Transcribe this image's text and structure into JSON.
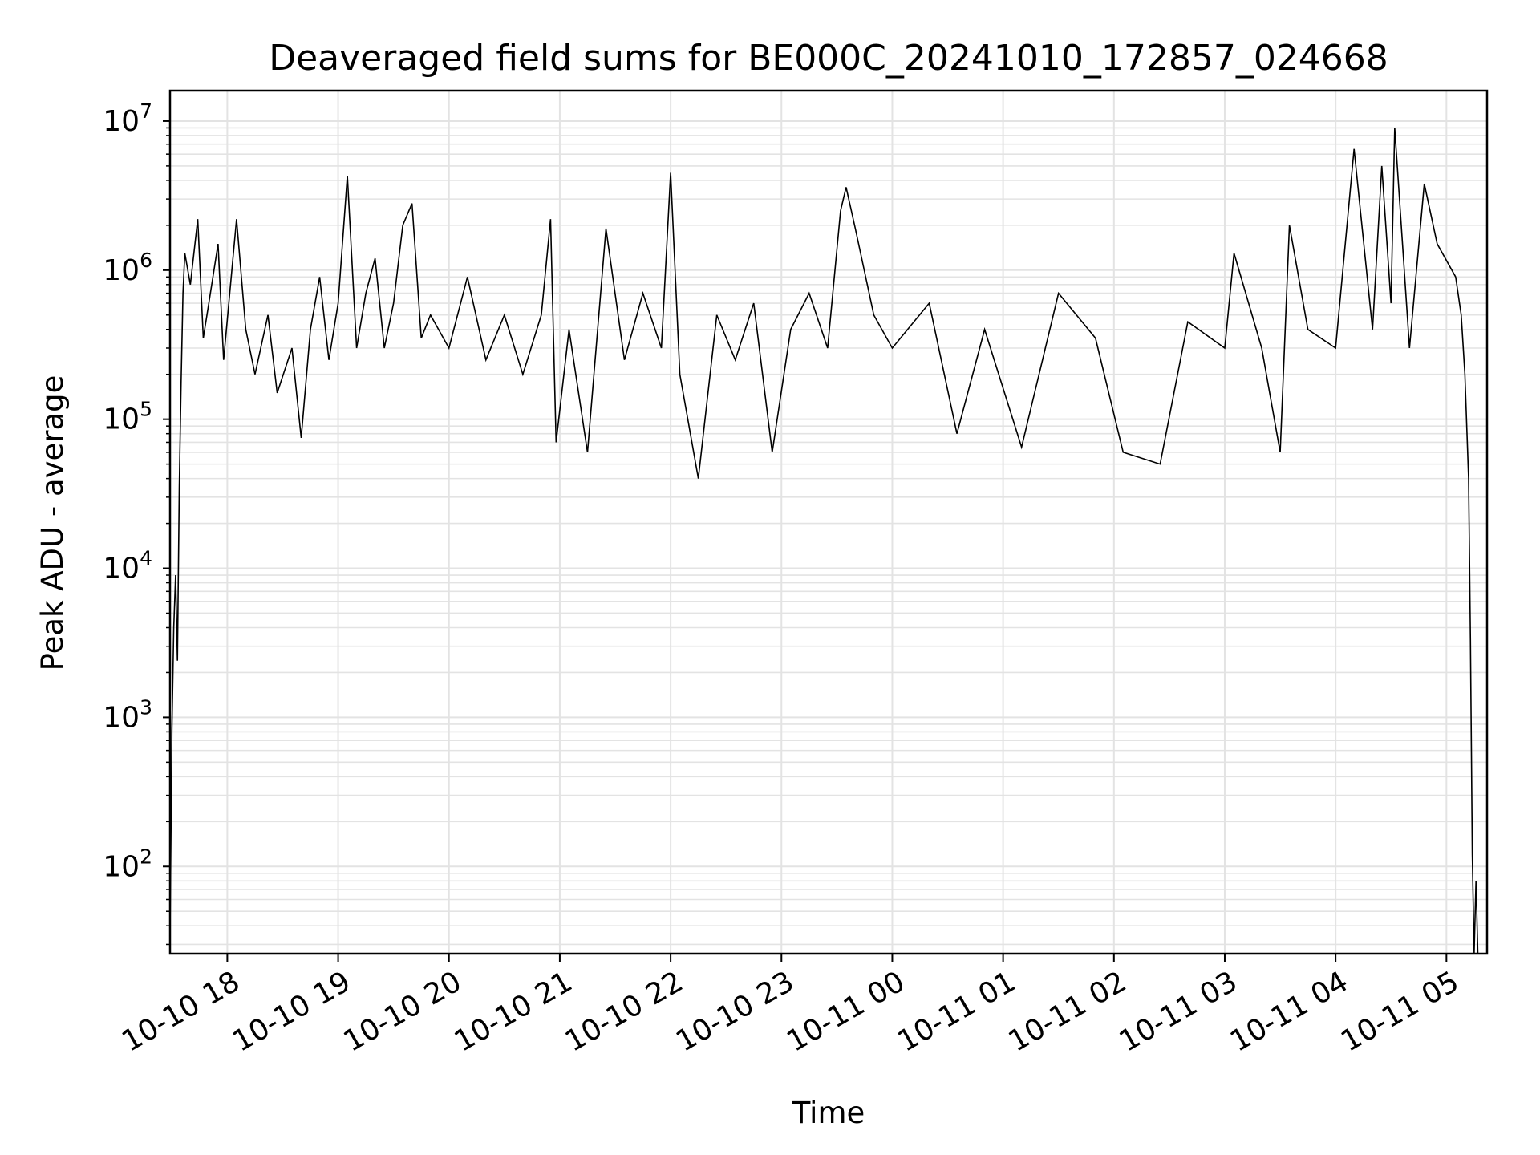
{
  "chart_data": {
    "type": "line",
    "title": "Deaveraged field sums for BE000C_20241010_172857_024668",
    "xlabel": "Time",
    "ylabel": "Peak ADU - average",
    "yscale": "log",
    "ylim": [
      26,
      16000000
    ],
    "xlim": [
      "2024-10-10 17:29",
      "2024-10-11 05:22"
    ],
    "grid": true,
    "line_color": "#000000",
    "grid_color": "#e3e3e3",
    "x_ticks": [
      {
        "value": "2024-10-10 18:00",
        "label": "10-10 18"
      },
      {
        "value": "2024-10-10 19:00",
        "label": "10-10 19"
      },
      {
        "value": "2024-10-10 20:00",
        "label": "10-10 20"
      },
      {
        "value": "2024-10-10 21:00",
        "label": "10-10 21"
      },
      {
        "value": "2024-10-10 22:00",
        "label": "10-10 22"
      },
      {
        "value": "2024-10-10 23:00",
        "label": "10-10 23"
      },
      {
        "value": "2024-10-11 00:00",
        "label": "10-11 00"
      },
      {
        "value": "2024-10-11 01:00",
        "label": "10-11 01"
      },
      {
        "value": "2024-10-11 02:00",
        "label": "10-11 02"
      },
      {
        "value": "2024-10-11 03:00",
        "label": "10-11 03"
      },
      {
        "value": "2024-10-11 04:00",
        "label": "10-11 04"
      },
      {
        "value": "2024-10-11 05:00",
        "label": "10-11 05"
      }
    ],
    "y_ticks": [
      {
        "value": 100,
        "base": "10",
        "exp": "2"
      },
      {
        "value": 1000,
        "base": "10",
        "exp": "3"
      },
      {
        "value": 10000,
        "base": "10",
        "exp": "4"
      },
      {
        "value": 100000,
        "base": "10",
        "exp": "5"
      },
      {
        "value": 1000000,
        "base": "10",
        "exp": "6"
      },
      {
        "value": 10000000,
        "base": "10",
        "exp": "7"
      }
    ],
    "series": [
      {
        "points": [
          [
            "2024-10-10 17:29",
            35
          ],
          [
            "2024-10-10 17:30",
            800
          ],
          [
            "2024-10-10 17:31",
            4000
          ],
          [
            "2024-10-10 17:32",
            9000
          ],
          [
            "2024-10-10 17:33",
            2400
          ],
          [
            "2024-10-10 17:34",
            35000
          ],
          [
            "2024-10-10 17:35",
            180000
          ],
          [
            "2024-10-10 17:36",
            700000
          ],
          [
            "2024-10-10 17:37",
            1300000
          ],
          [
            "2024-10-10 17:40",
            800000
          ],
          [
            "2024-10-10 17:44",
            2200000
          ],
          [
            "2024-10-10 17:47",
            350000
          ],
          [
            "2024-10-10 17:50",
            600000
          ],
          [
            "2024-10-10 17:55",
            1500000
          ],
          [
            "2024-10-10 17:58",
            250000
          ],
          [
            "2024-10-10 18:05",
            2200000
          ],
          [
            "2024-10-10 18:10",
            400000
          ],
          [
            "2024-10-10 18:15",
            200000
          ],
          [
            "2024-10-10 18:22",
            500000
          ],
          [
            "2024-10-10 18:27",
            150000
          ],
          [
            "2024-10-10 18:35",
            300000
          ],
          [
            "2024-10-10 18:40",
            75000
          ],
          [
            "2024-10-10 18:45",
            400000
          ],
          [
            "2024-10-10 18:50",
            900000
          ],
          [
            "2024-10-10 18:55",
            250000
          ],
          [
            "2024-10-10 19:00",
            600000
          ],
          [
            "2024-10-10 19:05",
            4300000
          ],
          [
            "2024-10-10 19:10",
            300000
          ],
          [
            "2024-10-10 19:15",
            700000
          ],
          [
            "2024-10-10 19:20",
            1200000
          ],
          [
            "2024-10-10 19:25",
            300000
          ],
          [
            "2024-10-10 19:30",
            600000
          ],
          [
            "2024-10-10 19:35",
            2000000
          ],
          [
            "2024-10-10 19:40",
            2800000
          ],
          [
            "2024-10-10 19:45",
            350000
          ],
          [
            "2024-10-10 19:50",
            500000
          ],
          [
            "2024-10-10 20:00",
            300000
          ],
          [
            "2024-10-10 20:10",
            900000
          ],
          [
            "2024-10-10 20:20",
            250000
          ],
          [
            "2024-10-10 20:30",
            500000
          ],
          [
            "2024-10-10 20:40",
            200000
          ],
          [
            "2024-10-10 20:50",
            500000
          ],
          [
            "2024-10-10 20:55",
            2200000
          ],
          [
            "2024-10-10 20:58",
            70000
          ],
          [
            "2024-10-10 21:05",
            400000
          ],
          [
            "2024-10-10 21:15",
            60000
          ],
          [
            "2024-10-10 21:25",
            1900000
          ],
          [
            "2024-10-10 21:35",
            250000
          ],
          [
            "2024-10-10 21:45",
            700000
          ],
          [
            "2024-10-10 21:55",
            300000
          ],
          [
            "2024-10-10 22:00",
            4500000
          ],
          [
            "2024-10-10 22:05",
            200000
          ],
          [
            "2024-10-10 22:15",
            40000
          ],
          [
            "2024-10-10 22:25",
            500000
          ],
          [
            "2024-10-10 22:35",
            250000
          ],
          [
            "2024-10-10 22:45",
            600000
          ],
          [
            "2024-10-10 22:55",
            60000
          ],
          [
            "2024-10-10 23:05",
            400000
          ],
          [
            "2024-10-10 23:15",
            700000
          ],
          [
            "2024-10-10 23:25",
            300000
          ],
          [
            "2024-10-10 23:32",
            2500000
          ],
          [
            "2024-10-10 23:35",
            3600000
          ],
          [
            "2024-10-10 23:40",
            1900000
          ],
          [
            "2024-10-10 23:50",
            500000
          ],
          [
            "2024-10-11 00:00",
            300000
          ],
          [
            "2024-10-11 00:20",
            600000
          ],
          [
            "2024-10-11 00:35",
            80000
          ],
          [
            "2024-10-11 00:50",
            400000
          ],
          [
            "2024-10-11 01:10",
            65000
          ],
          [
            "2024-10-11 01:30",
            700000
          ],
          [
            "2024-10-11 01:50",
            350000
          ],
          [
            "2024-10-11 02:05",
            60000
          ],
          [
            "2024-10-11 02:25",
            50000
          ],
          [
            "2024-10-11 02:40",
            450000
          ],
          [
            "2024-10-11 03:00",
            300000
          ],
          [
            "2024-10-11 03:05",
            1300000
          ],
          [
            "2024-10-11 03:20",
            300000
          ],
          [
            "2024-10-11 03:30",
            60000
          ],
          [
            "2024-10-11 03:35",
            2000000
          ],
          [
            "2024-10-11 03:45",
            400000
          ],
          [
            "2024-10-11 04:00",
            300000
          ],
          [
            "2024-10-11 04:10",
            6500000
          ],
          [
            "2024-10-11 04:20",
            400000
          ],
          [
            "2024-10-11 04:25",
            5000000
          ],
          [
            "2024-10-11 04:30",
            600000
          ],
          [
            "2024-10-11 04:32",
            9000000
          ],
          [
            "2024-10-11 04:40",
            300000
          ],
          [
            "2024-10-11 04:48",
            3800000
          ],
          [
            "2024-10-11 04:55",
            1500000
          ],
          [
            "2024-10-11 05:05",
            900000
          ],
          [
            "2024-10-11 05:08",
            500000
          ],
          [
            "2024-10-11 05:10",
            200000
          ],
          [
            "2024-10-11 05:12",
            40000
          ],
          [
            "2024-10-11 05:13",
            3300
          ],
          [
            "2024-10-11 05:14",
            120
          ],
          [
            "2024-10-11 05:15",
            26
          ],
          [
            "2024-10-11 05:16",
            80
          ],
          [
            "2024-10-11 05:17",
            26
          ]
        ]
      }
    ]
  }
}
